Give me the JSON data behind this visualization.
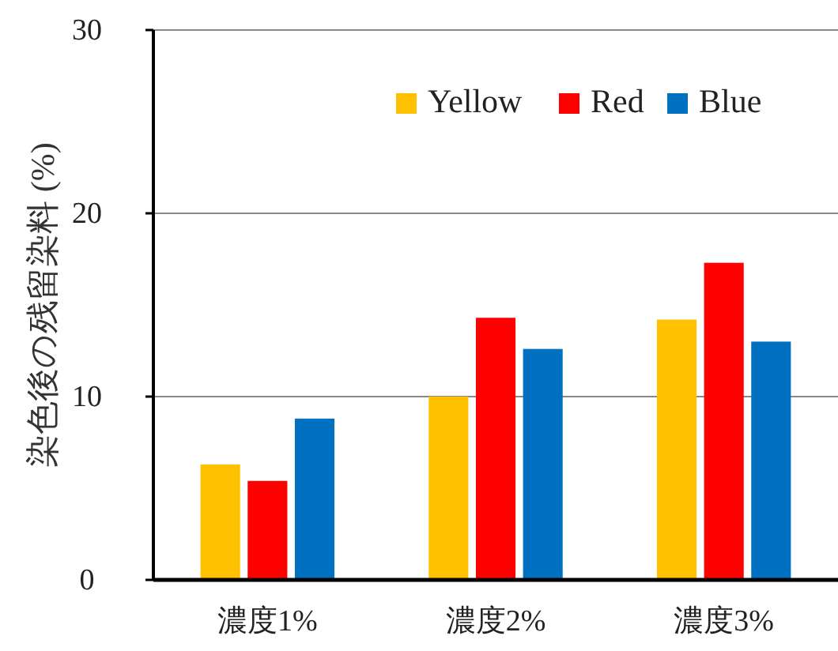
{
  "chart_data": {
    "type": "bar",
    "ylabel": "染色後の残留染料 (%)",
    "categories": [
      "濃度1%",
      "濃度2%",
      "濃度3%"
    ],
    "series": [
      {
        "name": "Yellow",
        "color": "#ffc000",
        "values": [
          6.3,
          10.0,
          14.2
        ]
      },
      {
        "name": "Red",
        "color": "#ff0000",
        "values": [
          5.4,
          14.3,
          17.3
        ]
      },
      {
        "name": "Blue",
        "color": "#0070c0",
        "values": [
          8.8,
          12.6,
          13.0
        ]
      }
    ],
    "ylim": [
      0,
      30
    ],
    "yticks": [
      0,
      10,
      20,
      30
    ],
    "grid": "y",
    "legend": "top right"
  }
}
